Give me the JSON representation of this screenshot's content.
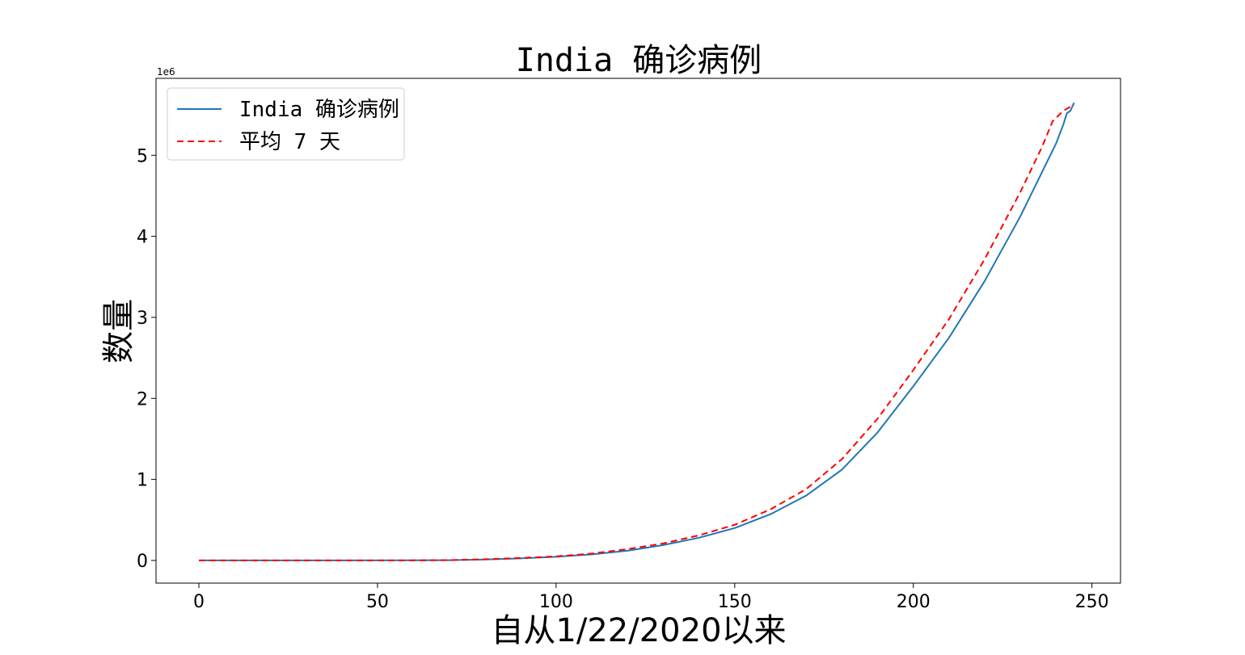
{
  "chart_data": {
    "type": "line",
    "title": "India 确诊病例",
    "xlabel": "自从1/22/2020以来",
    "ylabel": "数量",
    "y_offset_label": "1e6",
    "xlim": [
      -12,
      258
    ],
    "ylim": [
      -0.28,
      5.95
    ],
    "x_ticks": [
      0,
      50,
      100,
      150,
      200,
      250
    ],
    "y_ticks": [
      0,
      1,
      2,
      3,
      4,
      5
    ],
    "grid": false,
    "legend_position": "top-left",
    "series": [
      {
        "name": "India 确诊病例",
        "color": "#1f77b4",
        "dash": "solid",
        "x": [
          0,
          40,
          60,
          70,
          80,
          90,
          100,
          110,
          120,
          130,
          140,
          150,
          160,
          170,
          180,
          190,
          200,
          210,
          220,
          230,
          235,
          240,
          242,
          243,
          244,
          245
        ],
        "y": [
          0,
          0,
          0.001,
          0.003,
          0.012,
          0.025,
          0.045,
          0.075,
          0.12,
          0.19,
          0.28,
          0.4,
          0.57,
          0.8,
          1.12,
          1.58,
          2.15,
          2.75,
          3.45,
          4.25,
          4.7,
          5.15,
          5.38,
          5.52,
          5.55,
          5.65
        ]
      },
      {
        "name": "平均 7 天",
        "color": "#ff0000",
        "dash": "dashed",
        "x": [
          0,
          40,
          60,
          70,
          80,
          90,
          100,
          110,
          120,
          130,
          140,
          150,
          160,
          170,
          180,
          190,
          200,
          210,
          220,
          230,
          236,
          239,
          242,
          244,
          245
        ],
        "y": [
          0,
          0,
          0.001,
          0.004,
          0.014,
          0.03,
          0.05,
          0.085,
          0.14,
          0.21,
          0.31,
          0.44,
          0.63,
          0.88,
          1.25,
          1.75,
          2.35,
          2.98,
          3.72,
          4.55,
          5.1,
          5.42,
          5.55,
          5.6,
          5.62
        ]
      }
    ]
  }
}
